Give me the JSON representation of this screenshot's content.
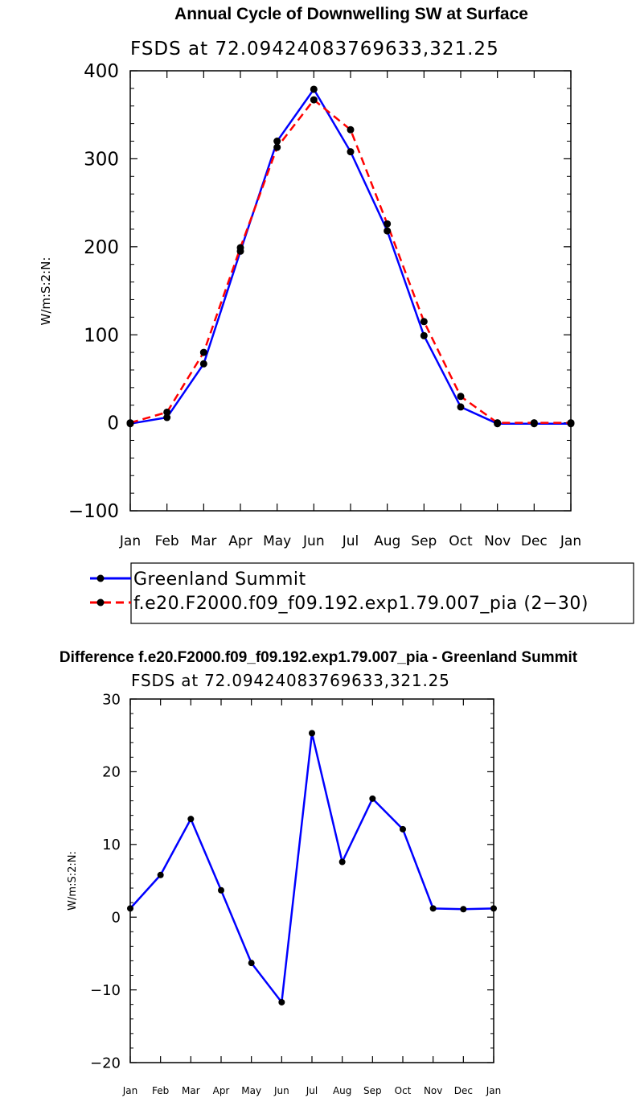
{
  "chart_data": [
    {
      "type": "line",
      "title": "Annual Cycle of Downwelling SW at Surface",
      "subtitle": "FSDS at 72.09424083769633,321.25",
      "xlabel": "",
      "ylabel": "W/m:S:2:N:",
      "categories": [
        "Jan",
        "Feb",
        "Mar",
        "Apr",
        "May",
        "Jun",
        "Jul",
        "Aug",
        "Sep",
        "Oct",
        "Nov",
        "Dec",
        "Jan"
      ],
      "ylim": [
        -100,
        400
      ],
      "yticks": [
        -100,
        0,
        100,
        200,
        300,
        400
      ],
      "ytick_labels": [
        "−100",
        "0",
        "100",
        "200",
        "300",
        "400"
      ],
      "series": [
        {
          "name": "Greenland Summit",
          "color": "#0000ff",
          "dash": "solid",
          "values": [
            -1,
            6,
            67,
            195,
            320,
            379,
            308,
            218,
            99,
            18,
            -1,
            -1,
            -1
          ]
        },
        {
          "name": "f.e20.F2000.f09_f09.192.exp1.79.007_pia (2−30)",
          "color": "#ff0000",
          "dash": "dashed",
          "values": [
            0,
            12,
            80,
            199,
            313,
            367,
            333,
            226,
            115,
            30,
            0,
            0,
            0
          ]
        }
      ],
      "legend": "below"
    },
    {
      "type": "line",
      "title": "Difference f.e20.F2000.f09_f09.192.exp1.79.007_pia - Greenland Summit",
      "subtitle": "FSDS at 72.09424083769633,321.25",
      "xlabel": "",
      "ylabel": "W/m:S:2:N:",
      "categories": [
        "Jan",
        "Feb",
        "Mar",
        "Apr",
        "May",
        "Jun",
        "Jul",
        "Aug",
        "Sep",
        "Oct",
        "Nov",
        "Dec",
        "Jan"
      ],
      "ylim": [
        -20,
        30
      ],
      "yticks": [
        -20,
        -10,
        0,
        10,
        20,
        30
      ],
      "ytick_labels": [
        "−20",
        "−10",
        "0",
        "10",
        "20",
        "30"
      ],
      "series": [
        {
          "name": "difference",
          "color": "#0000ff",
          "dash": "solid",
          "values": [
            1.2,
            5.8,
            13.5,
            3.7,
            -6.3,
            -11.7,
            25.3,
            7.6,
            16.3,
            12.1,
            1.2,
            1.1,
            1.2
          ]
        }
      ]
    }
  ]
}
